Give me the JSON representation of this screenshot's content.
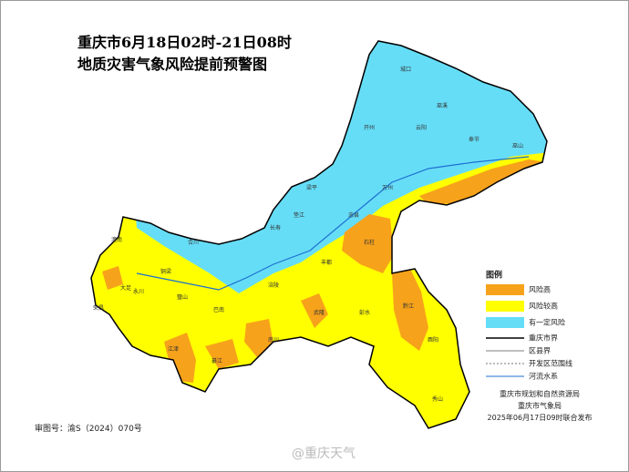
{
  "title": {
    "line1": "重庆市6月18日02时-21日08时",
    "line2": "地质灾害气象风险提前预警图"
  },
  "legend": {
    "title": "图例",
    "items": [
      "风险高",
      "风险较高",
      "有一定风险",
      "重庆市界",
      "区县界",
      "开发区范围线",
      "河流水系"
    ]
  },
  "districts": [
    "城口",
    "巫溪",
    "开州",
    "云阳",
    "奉节",
    "巫山",
    "万州",
    "梁平",
    "忠县",
    "石柱",
    "垫江",
    "长寿",
    "涪陵",
    "丰都",
    "武隆",
    "彭水",
    "黔江",
    "酉阳",
    "秀山",
    "南川",
    "綦江",
    "江津",
    "永川",
    "荣昌",
    "大足",
    "潼南",
    "合川",
    "铜梁",
    "璧山",
    "巴南"
  ],
  "credits": [
    "重庆市规划和自然资源局",
    "重庆市气象局",
    "2025年06月17日09时联合发布"
  ],
  "review_no": "审图号：渝S（2024）070号",
  "watermark": "@重庆天气"
}
